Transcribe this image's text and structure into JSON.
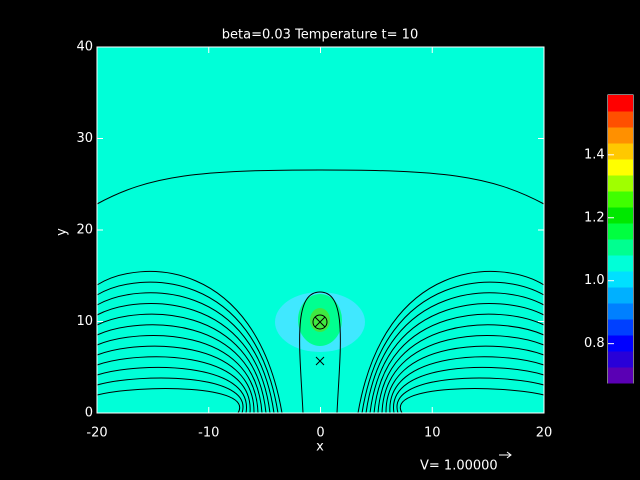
{
  "chart_data": {
    "type": "heatmap",
    "title": "beta=0.03 Temperature t= 10",
    "x_label": "x",
    "y_label": "y",
    "xlim": [
      -20,
      20
    ],
    "ylim": [
      0,
      40
    ],
    "xticks": [
      -20,
      -10,
      0,
      10,
      20
    ],
    "yticks": [
      0,
      10,
      20,
      30,
      40
    ],
    "colorbar_lim": [
      0.675,
      1.59
    ],
    "colorbar_ticks": [
      {
        "value": 0.8,
        "label": "0.8"
      },
      {
        "value": 1.0,
        "label": "1.0"
      },
      {
        "value": 1.2,
        "label": "1.2"
      },
      {
        "value": 1.4,
        "label": "1.4"
      }
    ],
    "colorbar_colors": [
      "#5a00b4",
      "#2800d8",
      "#0000ff",
      "#0040ff",
      "#0080ff",
      "#00b0ff",
      "#00e0ff",
      "#00ffd8",
      "#00ff90",
      "#00ff40",
      "#00e800",
      "#40ff00",
      "#a0ff00",
      "#ffff00",
      "#ffc800",
      "#ff9000",
      "#ff5000",
      "#ff0000"
    ],
    "vector_label": "V= 1.00000"
  }
}
